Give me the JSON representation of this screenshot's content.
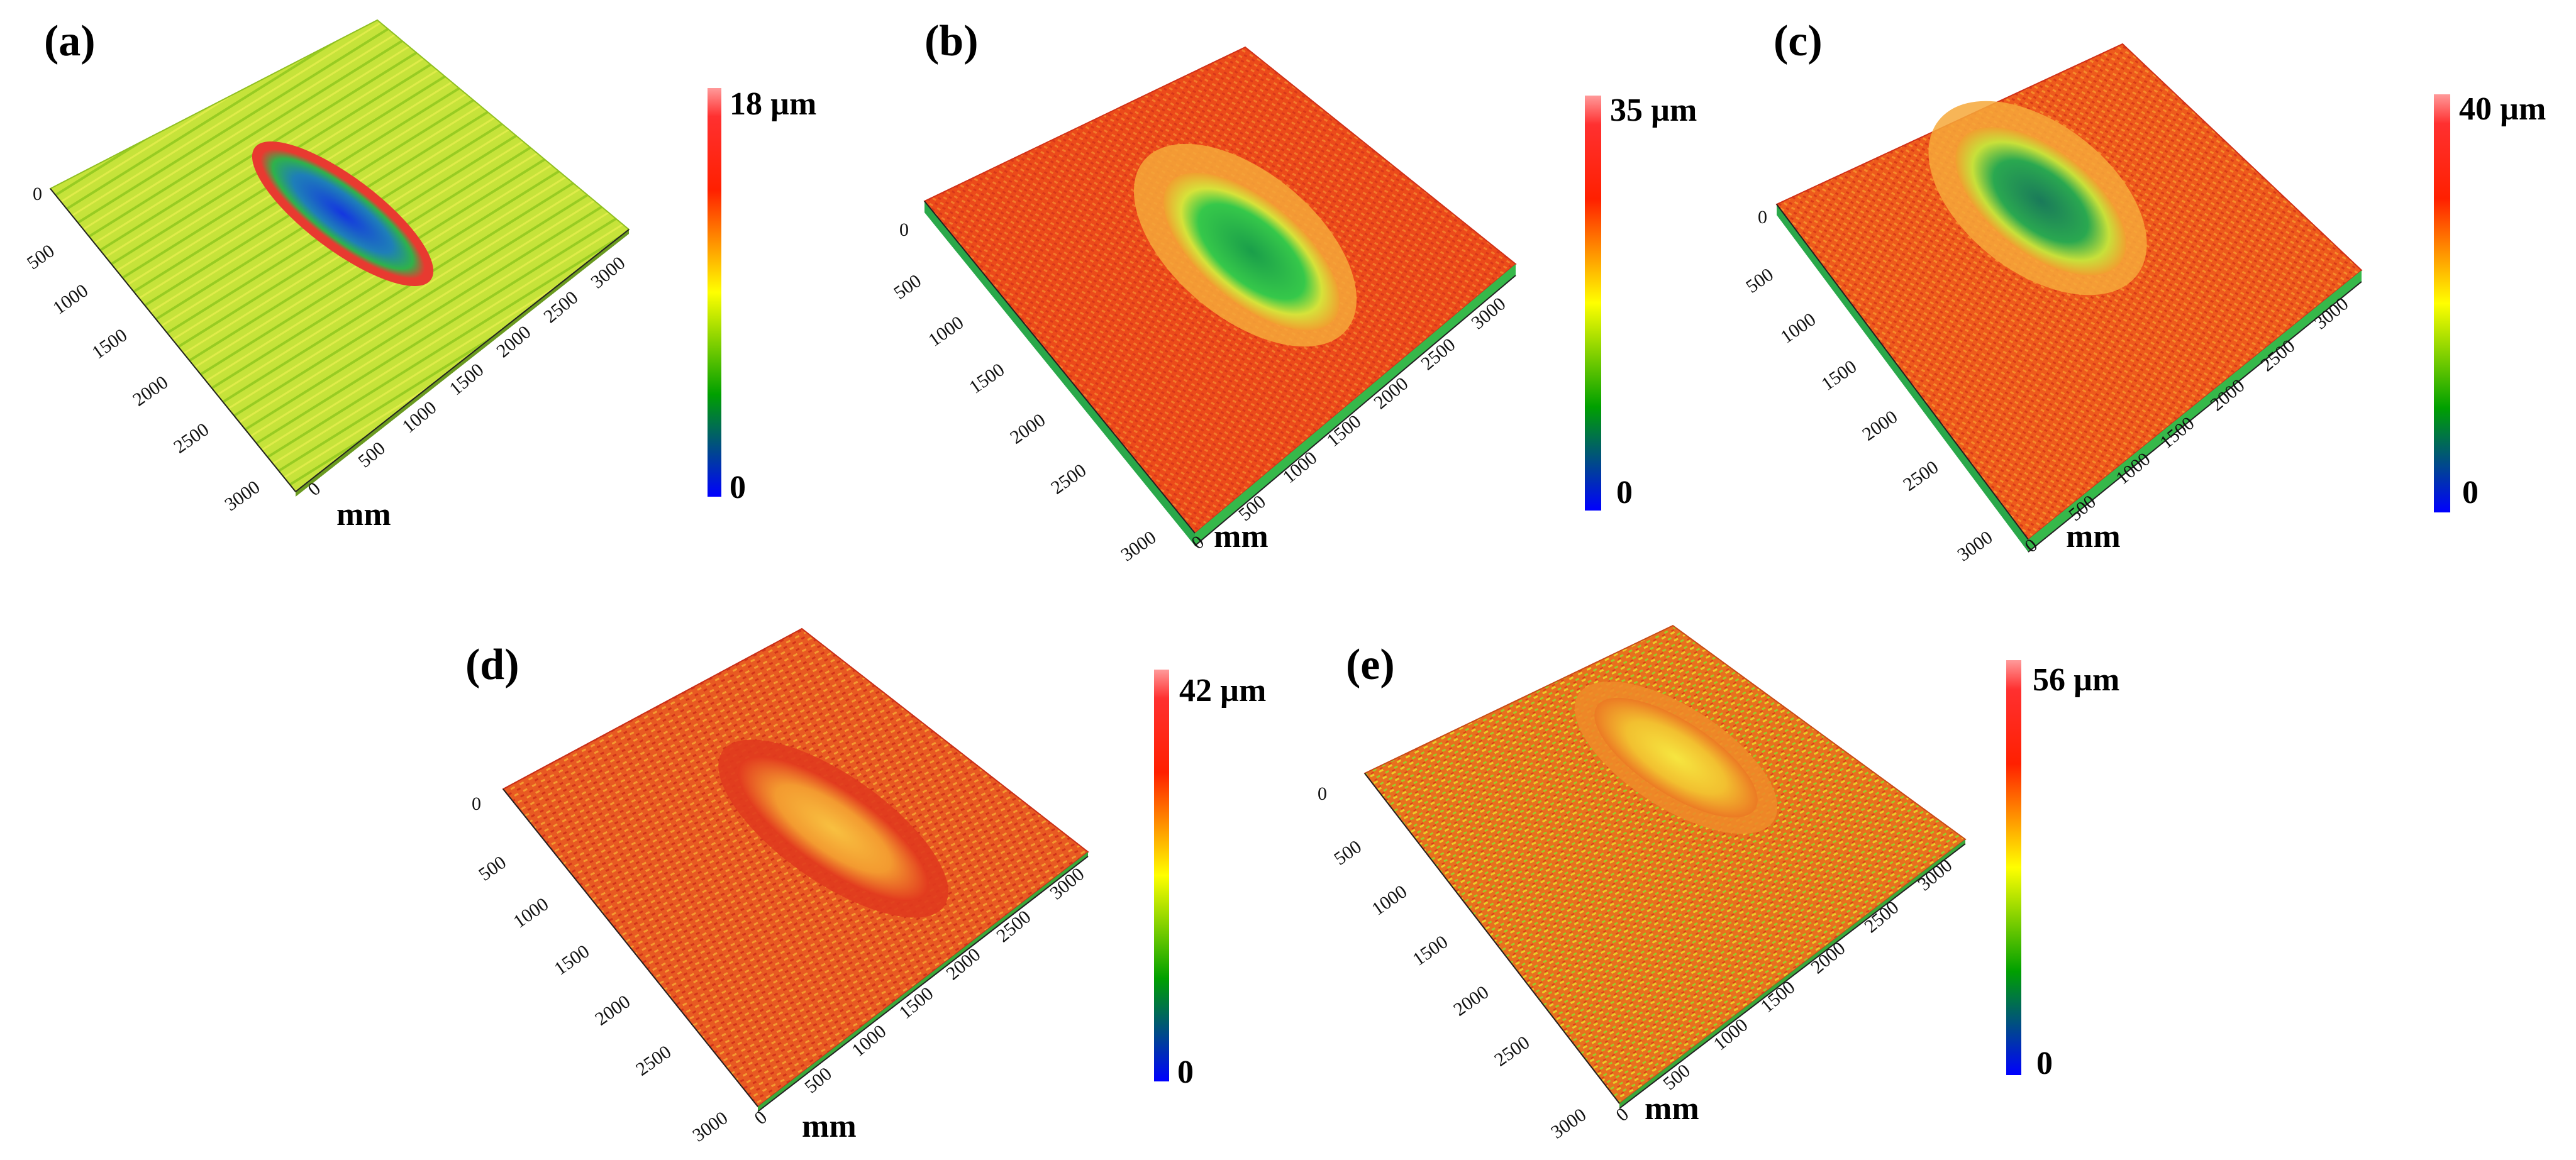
{
  "figure": {
    "panels": [
      {
        "id": "a",
        "label": "(a)",
        "colorbar_max": "18 µm",
        "colorbar_min": "0",
        "unit": "mm",
        "y_ticks": [
          "0",
          "500",
          "1000",
          "1500",
          "2000",
          "2500",
          "3000"
        ],
        "x_ticks": [
          "0",
          "500",
          "1000",
          "1500",
          "2000",
          "2500",
          "3000"
        ],
        "base_color": "#b8e02a",
        "crater_color": "#1d4fd8"
      },
      {
        "id": "b",
        "label": "(b)",
        "colorbar_max": "35 µm",
        "colorbar_min": "0",
        "unit": "mm",
        "y_ticks": [
          "0",
          "500",
          "1000",
          "1500",
          "2000",
          "2500",
          "3000"
        ],
        "x_ticks": [
          "0",
          "500",
          "1000",
          "1500",
          "2000",
          "2500",
          "3000"
        ],
        "base_color": "#ee4a1c",
        "crater_color": "#2fb84a"
      },
      {
        "id": "c",
        "label": "(c)",
        "colorbar_max": "40 µm",
        "colorbar_min": "0",
        "unit": "mm",
        "y_ticks": [
          "0",
          "500",
          "1000",
          "1500",
          "2000",
          "2500",
          "3000"
        ],
        "x_ticks": [
          "0",
          "500",
          "1000",
          "1500",
          "2000",
          "2500",
          "3000"
        ],
        "base_color": "#ef5a1e",
        "crater_color": "#2a9c5a"
      },
      {
        "id": "d",
        "label": "(d)",
        "colorbar_max": "42 µm",
        "colorbar_min": "0",
        "unit": "mm",
        "y_ticks": [
          "0",
          "500",
          "1000",
          "1500",
          "2000",
          "2500",
          "3000"
        ],
        "x_ticks": [
          "0",
          "500",
          "1000",
          "1500",
          "2000",
          "2500",
          "3000"
        ],
        "base_color": "#ec5a26",
        "crater_color": "#f7a93a"
      },
      {
        "id": "e",
        "label": "(e)",
        "colorbar_max": "56 µm",
        "colorbar_min": "0",
        "unit": "mm",
        "y_ticks": [
          "0",
          "500",
          "1000",
          "1500",
          "2000",
          "2500",
          "3000"
        ],
        "x_ticks": [
          "0",
          "500",
          "1000",
          "1500",
          "2000",
          "2500",
          "3000"
        ],
        "base_color": "#e8801e",
        "crater_color": "#f5d23a"
      }
    ],
    "colormap": [
      "#0000ff",
      "#008000",
      "#ffff00",
      "#ff0000",
      "#ff9090"
    ]
  }
}
